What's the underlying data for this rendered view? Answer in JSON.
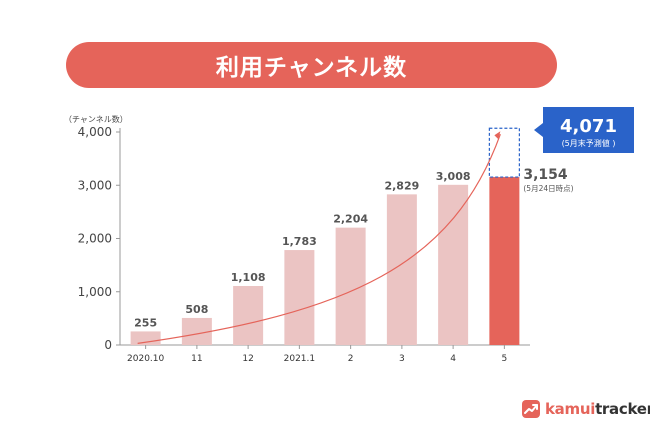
{
  "header": {
    "title": "利用チャンネル数"
  },
  "chart_data": {
    "type": "bar",
    "ylabel": "（チャンネル数）",
    "ylim": [
      0,
      4000
    ],
    "yticks": [
      0,
      1000,
      2000,
      3000,
      4000
    ],
    "ytick_labels": [
      "0",
      "1,000",
      "2,000",
      "3,000",
      "4,000"
    ],
    "categories": [
      "2020.10",
      "11",
      "12",
      "2021.1",
      "2",
      "3",
      "4",
      "5"
    ],
    "values": [
      255,
      508,
      1108,
      1783,
      2204,
      2829,
      3008,
      3154
    ],
    "value_labels": [
      "255",
      "508",
      "1,108",
      "1,783",
      "2,204",
      "2,829",
      "3,008",
      "3,154"
    ],
    "highlight_index": 7,
    "current_note": "(5月24日時点)",
    "forecast": {
      "value": 4071,
      "label": "4,071",
      "note": "(5月末予測値 )"
    },
    "colors": {
      "bar": "#ebc4c3",
      "highlight": "#e5645a",
      "forecast_box": "#2a63c9",
      "trend": "#e5645a"
    }
  },
  "brand": {
    "name_accent": "kamui",
    "name_rest": "tracker"
  }
}
